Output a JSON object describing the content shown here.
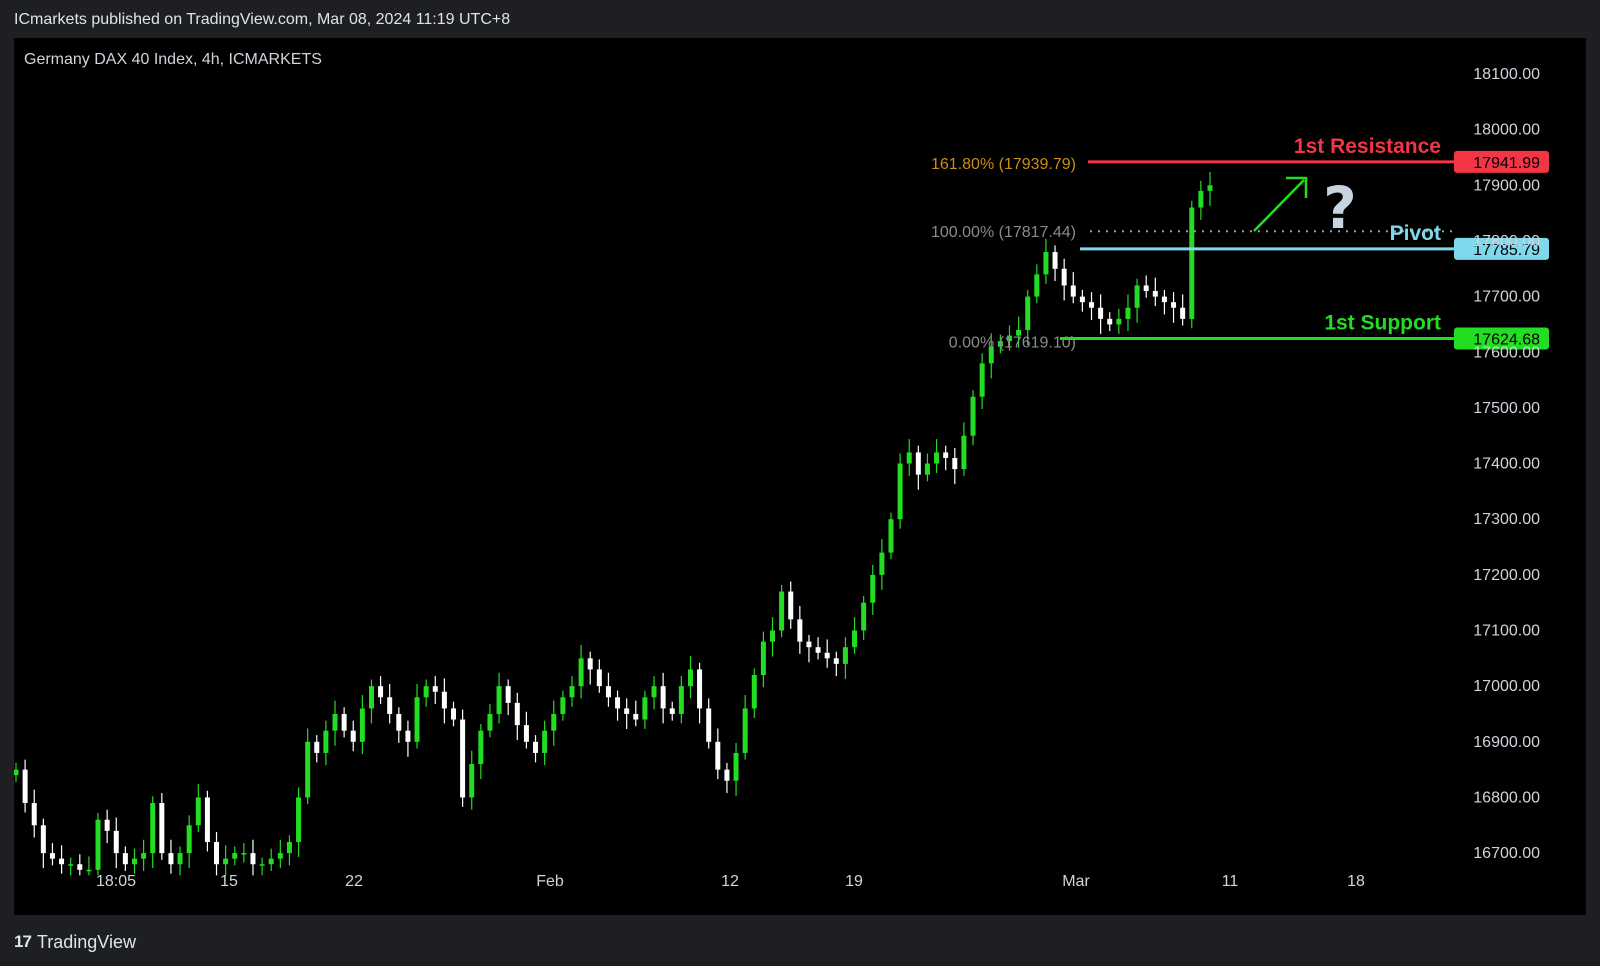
{
  "header": {
    "published": "ICmarkets published on TradingView.com, Mar 08, 2024 11:19 UTC+8"
  },
  "footer": {
    "logo_icon": "tradingview-logo-icon",
    "brand": "TradingView"
  },
  "chart_data": {
    "type": "candlestick",
    "title": "Germany DAX 40 Index, 4h, ICMARKETS",
    "xlabel": "",
    "ylabel": "",
    "ylim": [
      16660,
      18160
    ],
    "y_ticks": [
      "18100.00",
      "18000.00",
      "17900.00",
      "17800.00",
      "17700.00",
      "17600.00",
      "17500.00",
      "17400.00",
      "17300.00",
      "17200.00",
      "17100.00",
      "17000.00",
      "16900.00",
      "16800.00",
      "16700.00"
    ],
    "x_ticks": [
      "18:05",
      "15",
      "22",
      "Feb",
      "12",
      "19",
      "Mar",
      "11",
      "18"
    ],
    "grid": false,
    "colors": {
      "up": "#22dd22",
      "down": "#ffffff",
      "resistance": "#f23645",
      "pivot": "#7fd8ec",
      "support": "#22dd22",
      "fib_161": "#c98e12",
      "fib_text": "#8a8a8a"
    },
    "levels": [
      {
        "name": "1st Resistance",
        "value": 17941.99,
        "label": "17941.99"
      },
      {
        "name": "Pivot",
        "value": 17785.79,
        "label": "17785.79"
      },
      {
        "name": "1st Support",
        "value": 17624.68,
        "label": "17624.68"
      }
    ],
    "fib_levels": [
      {
        "label": "161.80% (17939.79)",
        "value": 17939.79
      },
      {
        "label": "100.00% (17817.44)",
        "value": 17817.44
      },
      {
        "label": "0.00% (17619.10)",
        "value": 17619.1
      }
    ],
    "annotation": "?",
    "price_path": [
      16850,
      16790,
      16750,
      16700,
      16690,
      16680,
      16680,
      16670,
      16670,
      16760,
      16740,
      16700,
      16680,
      16690,
      16700,
      16790,
      16700,
      16680,
      16700,
      16750,
      16800,
      16720,
      16680,
      16690,
      16700,
      16700,
      16680,
      16680,
      16690,
      16700,
      16720,
      16800,
      16900,
      16880,
      16920,
      16950,
      16920,
      16900,
      16960,
      17000,
      16980,
      16950,
      16920,
      16900,
      16980,
      17000,
      16990,
      16960,
      16940,
      16800,
      16860,
      16920,
      16950,
      17000,
      16970,
      16930,
      16900,
      16880,
      16920,
      16950,
      16980,
      17000,
      17050,
      17030,
      17000,
      16980,
      16960,
      16950,
      16940,
      16980,
      17000,
      16960,
      16950,
      17000,
      17030,
      16960,
      16900,
      16850,
      16830,
      16880,
      16960,
      17020,
      17080,
      17100,
      17170,
      17120,
      17080,
      17070,
      17060,
      17050,
      17040,
      17070,
      17100,
      17150,
      17200,
      17240,
      17300,
      17400,
      17420,
      17380,
      17400,
      17420,
      17410,
      17390,
      17450,
      17520,
      17580,
      17610,
      17620,
      17630,
      17640,
      17700,
      17740,
      17780,
      17750,
      17720,
      17700,
      17690,
      17680,
      17660,
      17650,
      17660,
      17680,
      17720,
      17710,
      17700,
      17690,
      17680,
      17660,
      17860,
      17890,
      17900
    ]
  }
}
